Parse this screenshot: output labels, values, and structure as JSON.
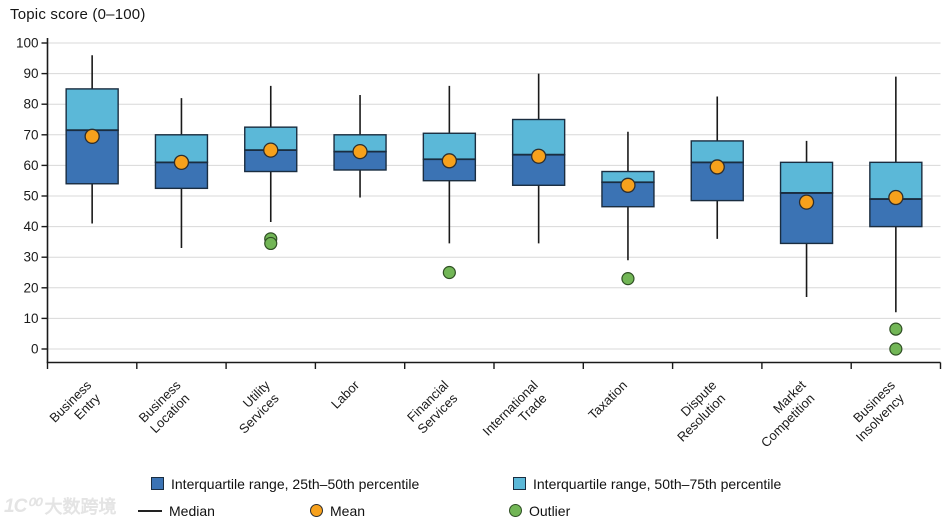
{
  "title": "Topic score (0–100)",
  "legend": {
    "iqr_low_label": "Interquartile range, 25th–50th percentile",
    "iqr_high_label": "Interquartile range, 50th–75th percentile",
    "median_label": "Median",
    "mean_label": "Mean",
    "outlier_label": "Outlier"
  },
  "watermark": {
    "logo": "1Ϲ⁰⁰",
    "text": "大数跨境"
  },
  "colors": {
    "box_dark": "#3B73B4",
    "box_light": "#5BB8D8",
    "box_border": "#1A2D40",
    "mean_fill": "#F7A11C",
    "mean_border": "#2E2E2E",
    "outlier_fill": "#72B656",
    "outlier_border": "#2F4F24",
    "grid": "#D8D8D8",
    "axis": "#1A1A1A",
    "whisker": "#1A1A1A"
  },
  "chart_data": {
    "type": "boxplot",
    "title": "Topic score (0–100)",
    "ylabel": "Topic score (0–100)",
    "ylim": [
      0,
      100
    ],
    "ytick_interval": 10,
    "grid": true,
    "legend_position": "bottom",
    "categories": [
      "Business Entry",
      "Business Location",
      "Utility Services",
      "Labor",
      "Financial Services",
      "International Trade",
      "Taxation",
      "Dispute Resolution",
      "Market Competition",
      "Business Insolvency"
    ],
    "boxes": [
      {
        "topic": "Business Entry",
        "label_lines": [
          "Business",
          "Entry"
        ],
        "min": 41,
        "q1": 54,
        "median": 71.5,
        "q3": 85,
        "max": 96,
        "mean": 69.5,
        "outliers": []
      },
      {
        "topic": "Business Location",
        "label_lines": [
          "Business",
          "Location"
        ],
        "min": 33,
        "q1": 52.5,
        "median": 61,
        "q3": 70,
        "max": 82,
        "mean": 61,
        "outliers": []
      },
      {
        "topic": "Utility Services",
        "label_lines": [
          "Utility",
          "Services"
        ],
        "min": 41.5,
        "q1": 58,
        "median": 65,
        "q3": 72.5,
        "max": 86,
        "mean": 65,
        "outliers": [
          36,
          34.5
        ]
      },
      {
        "topic": "Labor",
        "label_lines": [
          "Labor"
        ],
        "min": 49.5,
        "q1": 58.5,
        "median": 64.5,
        "q3": 70,
        "max": 83,
        "mean": 64.5,
        "outliers": []
      },
      {
        "topic": "Financial Services",
        "label_lines": [
          "Financial",
          "Services"
        ],
        "min": 34.5,
        "q1": 55,
        "median": 62,
        "q3": 70.5,
        "max": 86,
        "mean": 61.5,
        "outliers": [
          25
        ]
      },
      {
        "topic": "International Trade",
        "label_lines": [
          "International",
          "Trade"
        ],
        "min": 34.5,
        "q1": 53.5,
        "median": 63.5,
        "q3": 75,
        "max": 90,
        "mean": 63,
        "outliers": []
      },
      {
        "topic": "Taxation",
        "label_lines": [
          "Taxation"
        ],
        "min": 29,
        "q1": 46.5,
        "median": 54.5,
        "q3": 58,
        "max": 71,
        "mean": 53.5,
        "outliers": [
          23
        ]
      },
      {
        "topic": "Dispute Resolution",
        "label_lines": [
          "Dispute",
          "Resolution"
        ],
        "min": 36,
        "q1": 48.5,
        "median": 61,
        "q3": 68,
        "max": 82.5,
        "mean": 59.5,
        "outliers": []
      },
      {
        "topic": "Market Competition",
        "label_lines": [
          "Market",
          "Competition"
        ],
        "min": 17,
        "q1": 34.5,
        "median": 51,
        "q3": 61,
        "max": 68,
        "mean": 48,
        "outliers": []
      },
      {
        "topic": "Business Insolvency",
        "label_lines": [
          "Business",
          "Insolvency"
        ],
        "min": 12,
        "q1": 40,
        "median": 49,
        "q3": 61,
        "max": 89,
        "mean": 49.5,
        "outliers": [
          6.5,
          0
        ]
      }
    ]
  }
}
